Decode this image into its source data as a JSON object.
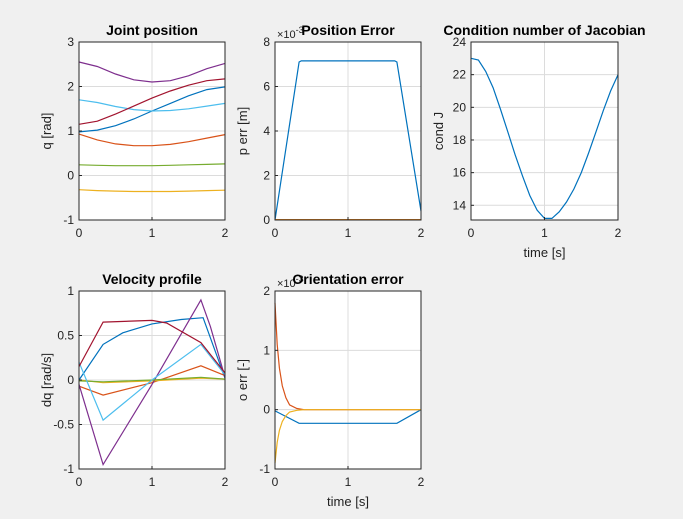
{
  "figure": {
    "background": "#f0f0f0",
    "axes_background": "#ffffff",
    "grid_color": "#dcdcdc",
    "axis_color": "#262626",
    "series_colors": [
      "#0072BD",
      "#D95319",
      "#EDB120",
      "#7E2F8E",
      "#77AC30",
      "#4DBEEE",
      "#A2142F"
    ]
  },
  "chart_data": [
    {
      "id": "joint",
      "type": "line",
      "title": "Joint position",
      "xlabel": "",
      "ylabel": "q [rad]",
      "xlim": [
        0,
        2
      ],
      "ylim": [
        -1,
        3
      ],
      "xticks": [
        0,
        1,
        2
      ],
      "yticks": [
        -1,
        0,
        1,
        2,
        3
      ],
      "x": [
        0,
        0.25,
        0.5,
        0.75,
        1,
        1.25,
        1.5,
        1.75,
        2
      ],
      "series": [
        {
          "color": "#0072BD",
          "values": [
            0.98,
            1.02,
            1.12,
            1.27,
            1.45,
            1.62,
            1.79,
            1.93,
            1.99
          ]
        },
        {
          "color": "#D95319",
          "values": [
            0.93,
            0.8,
            0.71,
            0.67,
            0.67,
            0.7,
            0.76,
            0.84,
            0.92
          ]
        },
        {
          "color": "#EDB120",
          "values": [
            -0.32,
            -0.34,
            -0.35,
            -0.36,
            -0.36,
            -0.36,
            -0.35,
            -0.34,
            -0.33
          ]
        },
        {
          "color": "#7E2F8E",
          "values": [
            2.55,
            2.45,
            2.28,
            2.15,
            2.1,
            2.13,
            2.24,
            2.4,
            2.52
          ]
        },
        {
          "color": "#77AC30",
          "values": [
            0.24,
            0.23,
            0.22,
            0.22,
            0.22,
            0.23,
            0.24,
            0.25,
            0.26
          ]
        },
        {
          "color": "#4DBEEE",
          "values": [
            1.7,
            1.64,
            1.55,
            1.48,
            1.45,
            1.46,
            1.5,
            1.56,
            1.62
          ]
        },
        {
          "color": "#A2142F",
          "values": [
            1.15,
            1.22,
            1.38,
            1.56,
            1.74,
            1.9,
            2.03,
            2.13,
            2.17
          ]
        }
      ]
    },
    {
      "id": "perr",
      "type": "line",
      "title": "Position Error",
      "xlabel": "",
      "ylabel": "p err [m]",
      "xlim": [
        0,
        2
      ],
      "ylim": [
        0,
        8
      ],
      "xticks": [
        0,
        1,
        2
      ],
      "yticks": [
        0,
        2,
        4,
        6,
        8
      ],
      "exponent": "×10",
      "exponent_power": "-3",
      "series": [
        {
          "color": "#0072BD",
          "x": [
            0,
            0.33,
            0.36,
            1.64,
            1.67,
            2
          ],
          "values": [
            0,
            7.1,
            7.15,
            7.15,
            7.1,
            0.4
          ]
        },
        {
          "color": "#D95319",
          "x": [
            0,
            2
          ],
          "values": [
            0.02,
            0.02
          ]
        },
        {
          "color": "#EDB120",
          "x": [
            0,
            2
          ],
          "values": [
            0.01,
            0.01
          ]
        }
      ]
    },
    {
      "id": "cond",
      "type": "line",
      "title": "Condition number of Jacobian",
      "xlabel": "time [s]",
      "ylabel": "cond J",
      "xlim": [
        0,
        2
      ],
      "ylim": [
        13.1,
        24
      ],
      "xticks": [
        0,
        1,
        2
      ],
      "yticks": [
        14,
        16,
        18,
        20,
        22,
        24
      ],
      "x": [
        0,
        0.1,
        0.2,
        0.3,
        0.4,
        0.5,
        0.6,
        0.7,
        0.8,
        0.9,
        1.0,
        1.1,
        1.2,
        1.3,
        1.4,
        1.5,
        1.6,
        1.7,
        1.8,
        1.9,
        2.0
      ],
      "series": [
        {
          "color": "#0072BD",
          "values": [
            23.0,
            22.9,
            22.2,
            21.2,
            19.9,
            18.5,
            17.1,
            15.8,
            14.6,
            13.7,
            13.2,
            13.2,
            13.6,
            14.2,
            15.0,
            16.0,
            17.2,
            18.5,
            19.8,
            21.0,
            22.0
          ]
        }
      ]
    },
    {
      "id": "vel",
      "type": "line",
      "title": "Velocity profile",
      "xlabel": "",
      "ylabel": "dq [rad/s]",
      "xlim": [
        0,
        2
      ],
      "ylim": [
        -1,
        1
      ],
      "xticks": [
        0,
        1,
        2
      ],
      "yticks": [
        -1,
        -0.5,
        0,
        0.5,
        1
      ],
      "series": [
        {
          "color": "#0072BD",
          "x": [
            0,
            0.33,
            0.6,
            1.0,
            1.4,
            1.7,
            2.0
          ],
          "values": [
            0.0,
            0.4,
            0.53,
            0.63,
            0.68,
            0.7,
            0.02
          ]
        },
        {
          "color": "#D95319",
          "x": [
            0,
            0.33,
            1.0,
            1.67,
            2.0
          ],
          "values": [
            -0.07,
            -0.17,
            -0.03,
            0.16,
            0.05
          ]
        },
        {
          "color": "#EDB120",
          "x": [
            0,
            0.33,
            1.0,
            1.67,
            2.0
          ],
          "values": [
            0.0,
            -0.03,
            -0.01,
            0.02,
            0.01
          ]
        },
        {
          "color": "#7E2F8E",
          "x": [
            0,
            0.33,
            1.0,
            1.67,
            1.8,
            2.0
          ],
          "values": [
            -0.05,
            -0.95,
            -0.05,
            0.9,
            0.6,
            0.03
          ]
        },
        {
          "color": "#77AC30",
          "x": [
            0,
            0.33,
            1.0,
            1.67,
            2.0
          ],
          "values": [
            -0.01,
            -0.02,
            0.0,
            0.03,
            0.01
          ]
        },
        {
          "color": "#4DBEEE",
          "x": [
            0,
            0.33,
            1.0,
            1.67,
            2.0
          ],
          "values": [
            0.2,
            -0.45,
            0.0,
            0.4,
            0.06
          ]
        },
        {
          "color": "#A2142F",
          "x": [
            0,
            0.33,
            1.0,
            1.2,
            1.67,
            2.0
          ],
          "values": [
            0.15,
            0.65,
            0.67,
            0.64,
            0.42,
            0.08
          ]
        }
      ]
    },
    {
      "id": "oerr",
      "type": "line",
      "title": "Orientation error",
      "xlabel": "time [s]",
      "ylabel": "o err [-]",
      "xlim": [
        0,
        2
      ],
      "ylim": [
        -1,
        2
      ],
      "xticks": [
        0,
        1,
        2
      ],
      "yticks": [
        -1,
        0,
        1,
        2
      ],
      "exponent": "×10",
      "exponent_power": "-3",
      "series": [
        {
          "color": "#0072BD",
          "x": [
            0,
            0.33,
            1.67,
            2.0
          ],
          "values": [
            -0.02,
            -0.23,
            -0.23,
            0.0
          ]
        },
        {
          "color": "#D95319",
          "x": [
            0,
            0.03,
            0.06,
            0.1,
            0.15,
            0.2,
            0.3,
            0.4,
            2.0
          ],
          "values": [
            1.8,
            1.1,
            0.7,
            0.4,
            0.2,
            0.08,
            0.02,
            0.0,
            0.0
          ]
        },
        {
          "color": "#EDB120",
          "x": [
            0,
            0.03,
            0.06,
            0.1,
            0.15,
            0.2,
            0.3,
            0.4,
            2.0
          ],
          "values": [
            -0.9,
            -0.55,
            -0.35,
            -0.2,
            -0.1,
            -0.04,
            -0.01,
            0.0,
            0.0
          ]
        }
      ]
    }
  ]
}
